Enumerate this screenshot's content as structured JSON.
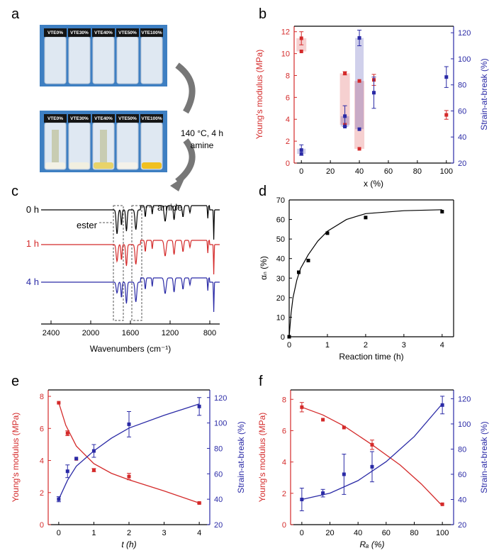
{
  "panels": {
    "a": {
      "label": "a",
      "vial_labels": [
        "VTE0%",
        "VTE30%",
        "VTE40%",
        "VTE50%",
        "VTE100%"
      ],
      "arrow_text": [
        "140 °C, 4 h",
        "amine"
      ]
    },
    "b": {
      "label": "b",
      "xlabel": "x (%)",
      "ylabel_left": "Young's modulus (MPa)",
      "ylabel_right": "Strain-at-break (%)"
    },
    "c": {
      "label": "c",
      "xlabel": "Wavenumbers (cm⁻¹)",
      "traces": [
        "0 h",
        "1 h",
        "4 h"
      ],
      "annotations": [
        "ester",
        "amide"
      ]
    },
    "d": {
      "label": "d",
      "xlabel": "Reaction time (h)",
      "ylabel": "αₙ (%)"
    },
    "e": {
      "label": "e",
      "xlabel": "t (h)",
      "ylabel_left": "Young's modulus (MPa)",
      "ylabel_right": "Strain-at-break (%)"
    },
    "f": {
      "label": "f",
      "xlabel": "Rₐ (%)",
      "ylabel_left": "Young's modulus (MPa)",
      "ylabel_right": "Strain-at-break (%)"
    }
  },
  "colors": {
    "red": "#d42a2a",
    "blue": "#2a2aa6",
    "black": "#000000"
  },
  "chart_data": [
    {
      "id": "b",
      "type": "scatter",
      "xlim": [
        -5,
        105
      ],
      "xticks": [
        0,
        20,
        40,
        60,
        80,
        100
      ],
      "ylim_left": [
        0,
        12.5
      ],
      "yticks_left": [
        0,
        2,
        4,
        6,
        8,
        10,
        12
      ],
      "ylim_right": [
        20,
        125
      ],
      "yticks_right": [
        20,
        40,
        60,
        80,
        100,
        120
      ],
      "series": [
        {
          "name": "Young's modulus",
          "axis": "left",
          "color": "red",
          "points": [
            [
              0,
              11.4,
              0.6
            ],
            [
              0,
              10.2,
              0
            ],
            [
              30,
              8.2,
              0.15
            ],
            [
              30,
              3.5,
              0
            ],
            [
              40,
              7.5,
              0
            ],
            [
              40,
              1.3,
              0
            ],
            [
              50,
              7.6,
              0.5
            ],
            [
              100,
              4.4,
              0.4
            ]
          ]
        },
        {
          "name": "Strain-at-break",
          "axis": "right",
          "color": "blue",
          "points": [
            [
              0,
              30,
              4
            ],
            [
              0,
              27,
              0
            ],
            [
              30,
              56,
              8
            ],
            [
              30,
              48,
              0
            ],
            [
              40,
              116,
              6
            ],
            [
              40,
              46,
              0
            ],
            [
              50,
              74,
              12
            ],
            [
              100,
              86,
              8
            ]
          ]
        }
      ],
      "shaded_bars": [
        {
          "x": 0,
          "axis": "left",
          "range": [
            10.2,
            11.4
          ],
          "color": "red"
        },
        {
          "x": 30,
          "axis": "left",
          "range": [
            3.5,
            8.2
          ],
          "color": "red"
        },
        {
          "x": 40,
          "axis": "left",
          "range": [
            1.3,
            7.5
          ],
          "color": "red"
        },
        {
          "x": 0,
          "axis": "right",
          "range": [
            27,
            31
          ],
          "color": "blue"
        },
        {
          "x": 30,
          "axis": "right",
          "range": [
            48,
            56
          ],
          "color": "blue"
        },
        {
          "x": 40,
          "axis": "right",
          "range": [
            46,
            116
          ],
          "color": "blue"
        }
      ]
    },
    {
      "id": "c",
      "type": "line",
      "xlim": [
        2500,
        700
      ],
      "xticks": [
        2400,
        2000,
        1600,
        1200,
        800
      ]
    },
    {
      "id": "d",
      "type": "scatter",
      "xlim": [
        0,
        4.3
      ],
      "xticks": [
        0,
        1,
        2,
        3,
        4
      ],
      "ylim": [
        0,
        70
      ],
      "yticks": [
        0,
        10,
        20,
        30,
        40,
        50,
        60,
        70
      ],
      "x": [
        0,
        0.25,
        0.5,
        1,
        2,
        4
      ],
      "values": [
        0,
        33,
        39,
        53,
        61,
        64
      ],
      "fit": [
        [
          0,
          0
        ],
        [
          0.05,
          12
        ],
        [
          0.1,
          20
        ],
        [
          0.2,
          29
        ],
        [
          0.3,
          35
        ],
        [
          0.5,
          42
        ],
        [
          0.75,
          49
        ],
        [
          1,
          54
        ],
        [
          1.5,
          60
        ],
        [
          2,
          63
        ],
        [
          3,
          64.5
        ],
        [
          4,
          65
        ]
      ]
    },
    {
      "id": "e",
      "type": "scatter",
      "xlim": [
        -0.3,
        4.3
      ],
      "xticks": [
        0,
        1,
        2,
        3,
        4
      ],
      "ylim_left": [
        0,
        8.4
      ],
      "yticks_left": [
        0,
        2,
        4,
        6,
        8
      ],
      "ylim_right": [
        20,
        126
      ],
      "yticks_right": [
        20,
        40,
        60,
        80,
        100,
        120
      ],
      "series": [
        {
          "name": "Young's modulus",
          "axis": "left",
          "color": "red",
          "x": [
            0,
            0.25,
            0.5,
            1,
            2,
            4
          ],
          "values": [
            7.6,
            5.7,
            4.1,
            3.4,
            3.0,
            1.35
          ],
          "errors": [
            0,
            0.15,
            0,
            0.1,
            0.2,
            0.05
          ],
          "fit": [
            [
              0,
              7.6
            ],
            [
              0.2,
              6.2
            ],
            [
              0.5,
              4.9
            ],
            [
              1,
              3.8
            ],
            [
              1.5,
              3.2
            ],
            [
              2,
              2.8
            ],
            [
              3,
              2.1
            ],
            [
              4,
              1.35
            ]
          ]
        },
        {
          "name": "Strain-at-break",
          "axis": "right",
          "color": "blue",
          "x": [
            0,
            0.25,
            0.5,
            1,
            2,
            4
          ],
          "values": [
            40,
            62,
            72,
            78,
            99,
            113
          ],
          "errors": [
            2,
            5,
            0,
            5,
            10,
            7
          ],
          "fit": [
            [
              0,
              40
            ],
            [
              0.25,
              55
            ],
            [
              0.5,
              66
            ],
            [
              1,
              78
            ],
            [
              1.5,
              88
            ],
            [
              2,
              96
            ],
            [
              3,
              106
            ],
            [
              4,
              115
            ]
          ]
        }
      ]
    },
    {
      "id": "f",
      "type": "scatter",
      "xlim": [
        -8,
        108
      ],
      "xticks": [
        0,
        20,
        40,
        60,
        80,
        100
      ],
      "ylim_left": [
        0,
        8.6
      ],
      "yticks_left": [
        0,
        2,
        4,
        6,
        8
      ],
      "ylim_right": [
        20,
        127
      ],
      "yticks_right": [
        20,
        40,
        60,
        80,
        100,
        120
      ],
      "series": [
        {
          "name": "Young's modulus",
          "axis": "left",
          "color": "red",
          "x": [
            0,
            15,
            30,
            50,
            100
          ],
          "values": [
            7.5,
            6.7,
            6.2,
            5.1,
            1.3
          ],
          "errors": [
            0.3,
            0,
            0,
            0.3,
            0
          ],
          "fit": [
            [
              0,
              7.5
            ],
            [
              15,
              7.0
            ],
            [
              30,
              6.3
            ],
            [
              50,
              5.1
            ],
            [
              70,
              3.8
            ],
            [
              85,
              2.6
            ],
            [
              100,
              1.2
            ]
          ]
        },
        {
          "name": "Strain-at-break",
          "axis": "right",
          "color": "blue",
          "x": [
            0,
            15,
            30,
            50,
            100
          ],
          "values": [
            40,
            45,
            60,
            66,
            115
          ],
          "errors": [
            9,
            3,
            16,
            12,
            7
          ],
          "fit": [
            [
              0,
              40
            ],
            [
              20,
              45
            ],
            [
              40,
              55
            ],
            [
              60,
              70
            ],
            [
              80,
              90
            ],
            [
              100,
              116
            ]
          ]
        }
      ]
    }
  ]
}
